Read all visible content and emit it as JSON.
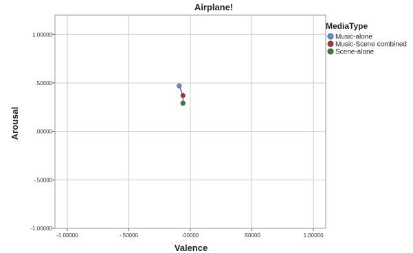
{
  "chart_data": {
    "type": "scatter",
    "title": "Airplane!",
    "xlabel": "Valence",
    "ylabel": "Arousal",
    "xlim": [
      -1.1,
      1.1
    ],
    "ylim": [
      -1.0,
      1.2
    ],
    "xticks": [
      -1.0,
      -0.5,
      0.0,
      0.5,
      1.0
    ],
    "xtick_labels": [
      "-1.00000",
      "-.50000",
      ".00000",
      ".50000",
      "1.00000"
    ],
    "yticks": [
      -1.0,
      -0.5,
      0.0,
      0.5,
      1.0
    ],
    "ytick_labels": [
      "-1.00000",
      "-.50000",
      ".00000",
      ".50000",
      "1.00000"
    ],
    "grid": true,
    "legend": {
      "title": "MediaType",
      "position": "top-right",
      "entries": [
        "Music-alone",
        "Music-Scene combined",
        "Scene-alone"
      ]
    },
    "series": [
      {
        "name": "Music-alone",
        "color": "#5b8fd6",
        "points": [
          {
            "x": -0.09,
            "y": 0.47
          }
        ]
      },
      {
        "name": "Music-Scene combined",
        "color": "#a8343a",
        "points": [
          {
            "x": -0.06,
            "y": 0.37
          }
        ]
      },
      {
        "name": "Scene-alone",
        "color": "#3d7a3d",
        "points": [
          {
            "x": -0.06,
            "y": 0.29
          }
        ]
      }
    ],
    "connector_color": "#7a2a6a"
  }
}
